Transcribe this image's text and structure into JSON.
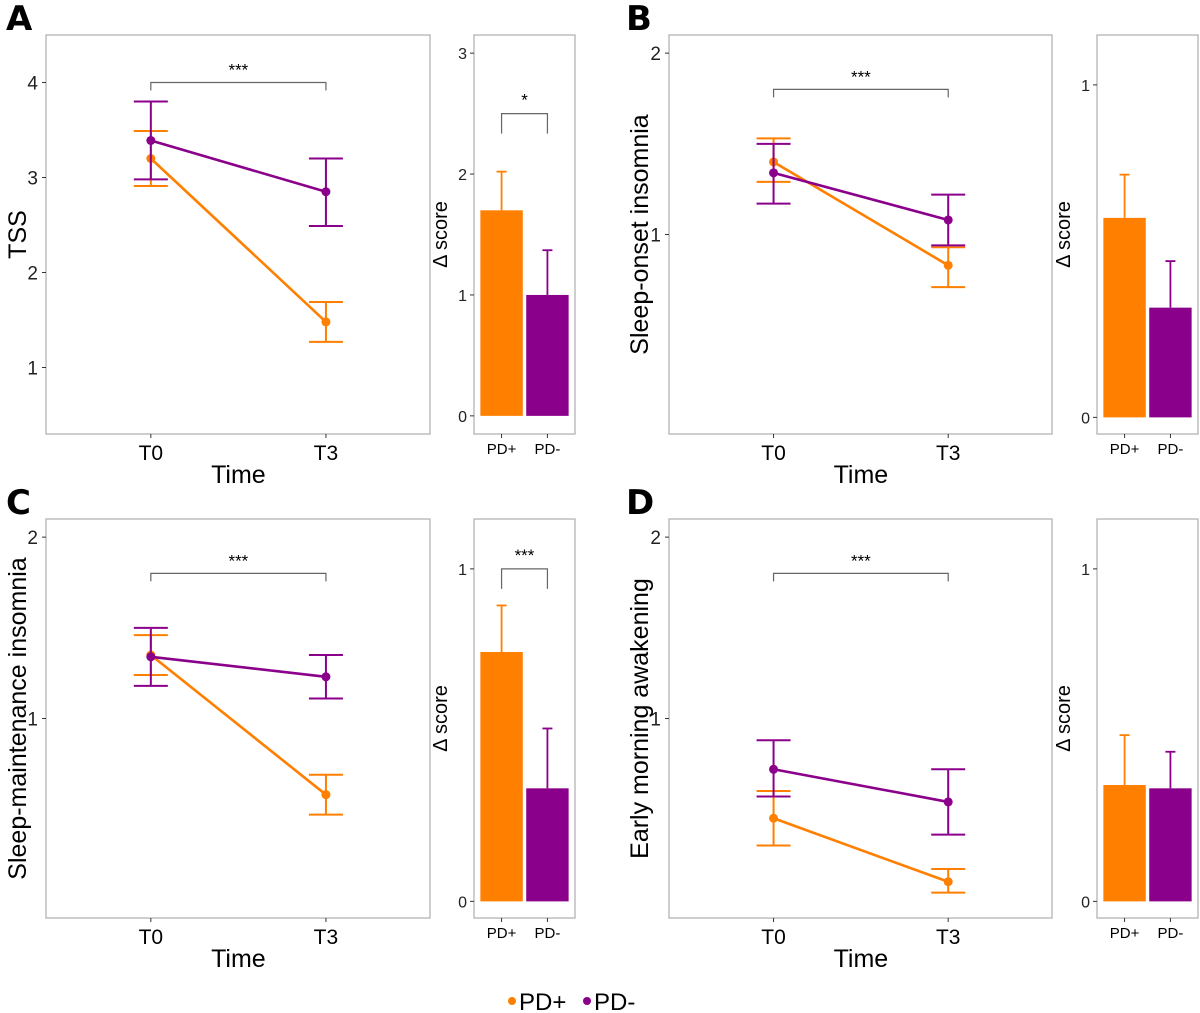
{
  "figure": {
    "colors": {
      "PD+": "#ff7f00",
      "PD-": "#8b008b",
      "frame": "#b3b3b3",
      "bracket": "#666666"
    },
    "legend": [
      {
        "label": "PD+",
        "color": "#ff7f00"
      },
      {
        "label": "PD-",
        "color": "#8b008b"
      }
    ]
  },
  "chart_data": [
    {
      "panel": "A",
      "type": "line",
      "title": "",
      "xlabel": "Time",
      "ylabel": "TSS",
      "categories": [
        "T0",
        "T3"
      ],
      "ylim": [
        0.3,
        4.5
      ],
      "yticks": [
        1,
        2,
        3,
        4
      ],
      "grid": false,
      "series": [
        {
          "name": "PD+",
          "values": [
            3.2,
            1.48
          ],
          "err_upper": [
            3.49,
            1.69
          ],
          "err_lower": [
            2.91,
            1.27
          ]
        },
        {
          "name": "PD-",
          "values": [
            3.39,
            2.85
          ],
          "err_upper": [
            3.8,
            3.2
          ],
          "err_lower": [
            2.98,
            2.49
          ]
        }
      ],
      "annotation": {
        "text": "***",
        "between": [
          "T0",
          "T3"
        ],
        "y": 4.0
      }
    },
    {
      "panel": "A-delta",
      "type": "bar",
      "title": "",
      "xlabel": "",
      "ylabel": "Δ score",
      "categories": [
        "PD+",
        "PD-"
      ],
      "values": [
        1.7,
        1.0
      ],
      "err_upper": [
        2.02,
        1.37
      ],
      "ylim": [
        -0.15,
        3.15
      ],
      "yticks": [
        0,
        1,
        2,
        3
      ],
      "grid": false,
      "annotation": {
        "text": "*",
        "between": [
          "PD+",
          "PD-"
        ],
        "y": 2.5
      }
    },
    {
      "panel": "B",
      "type": "line",
      "title": "",
      "xlabel": "Time",
      "ylabel": "Sleep-onset insomnia",
      "categories": [
        "T0",
        "T3"
      ],
      "ylim": [
        -0.1,
        2.1
      ],
      "yticks": [
        1,
        2
      ],
      "grid": false,
      "series": [
        {
          "name": "PD+",
          "values": [
            1.4,
            0.83
          ],
          "err_upper": [
            1.53,
            0.93
          ],
          "err_lower": [
            1.29,
            0.71
          ]
        },
        {
          "name": "PD-",
          "values": [
            1.34,
            1.08
          ],
          "err_upper": [
            1.5,
            1.22
          ],
          "err_lower": [
            1.17,
            0.94
          ]
        }
      ],
      "annotation": {
        "text": "***",
        "between": [
          "T0",
          "T3"
        ],
        "y": 1.8
      }
    },
    {
      "panel": "B-delta",
      "type": "bar",
      "title": "",
      "xlabel": "",
      "ylabel": "Δ score",
      "categories": [
        "PD+",
        "PD-"
      ],
      "values": [
        0.6,
        0.33
      ],
      "err_upper": [
        0.73,
        0.47
      ],
      "ylim": [
        -0.05,
        1.15
      ],
      "yticks": [
        0,
        1
      ],
      "grid": false,
      "annotation": null
    },
    {
      "panel": "C",
      "type": "line",
      "title": "",
      "xlabel": "Time",
      "ylabel": "Sleep-maintenance insomnia",
      "categories": [
        "T0",
        "T3"
      ],
      "ylim": [
        -0.1,
        2.1
      ],
      "yticks": [
        1,
        2
      ],
      "grid": false,
      "series": [
        {
          "name": "PD+",
          "values": [
            1.35,
            0.58
          ],
          "err_upper": [
            1.46,
            0.69
          ],
          "err_lower": [
            1.24,
            0.47
          ]
        },
        {
          "name": "PD-",
          "values": [
            1.34,
            1.23
          ],
          "err_upper": [
            1.5,
            1.35
          ],
          "err_lower": [
            1.18,
            1.11
          ]
        }
      ],
      "annotation": {
        "text": "***",
        "between": [
          "T0",
          "T3"
        ],
        "y": 1.8
      }
    },
    {
      "panel": "C-delta",
      "type": "bar",
      "title": "",
      "xlabel": "",
      "ylabel": "Δ score",
      "categories": [
        "PD+",
        "PD-"
      ],
      "values": [
        0.75,
        0.34
      ],
      "err_upper": [
        0.89,
        0.52
      ],
      "ylim": [
        -0.05,
        1.15
      ],
      "yticks": [
        0,
        1
      ],
      "grid": false,
      "annotation": {
        "text": "***",
        "between": [
          "PD+",
          "PD-"
        ],
        "y": 1.0
      }
    },
    {
      "panel": "D",
      "type": "line",
      "title": "",
      "xlabel": "Time",
      "ylabel": "Early morning awakening",
      "categories": [
        "T0",
        "T3"
      ],
      "ylim": [
        -0.1,
        2.1
      ],
      "yticks": [
        1,
        2
      ],
      "grid": false,
      "series": [
        {
          "name": "PD+",
          "values": [
            0.45,
            0.1
          ],
          "err_upper": [
            0.6,
            0.17
          ],
          "err_lower": [
            0.3,
            0.04
          ]
        },
        {
          "name": "PD-",
          "values": [
            0.72,
            0.54
          ],
          "err_upper": [
            0.88,
            0.72
          ],
          "err_lower": [
            0.57,
            0.36
          ]
        }
      ],
      "annotation": {
        "text": "***",
        "between": [
          "T0",
          "T3"
        ],
        "y": 1.8
      }
    },
    {
      "panel": "D-delta",
      "type": "bar",
      "title": "",
      "xlabel": "",
      "ylabel": "Δ score",
      "categories": [
        "PD+",
        "PD-"
      ],
      "values": [
        0.35,
        0.34
      ],
      "err_upper": [
        0.5,
        0.45
      ],
      "ylim": [
        -0.05,
        1.15
      ],
      "yticks": [
        0,
        1
      ],
      "grid": false,
      "annotation": null
    }
  ]
}
